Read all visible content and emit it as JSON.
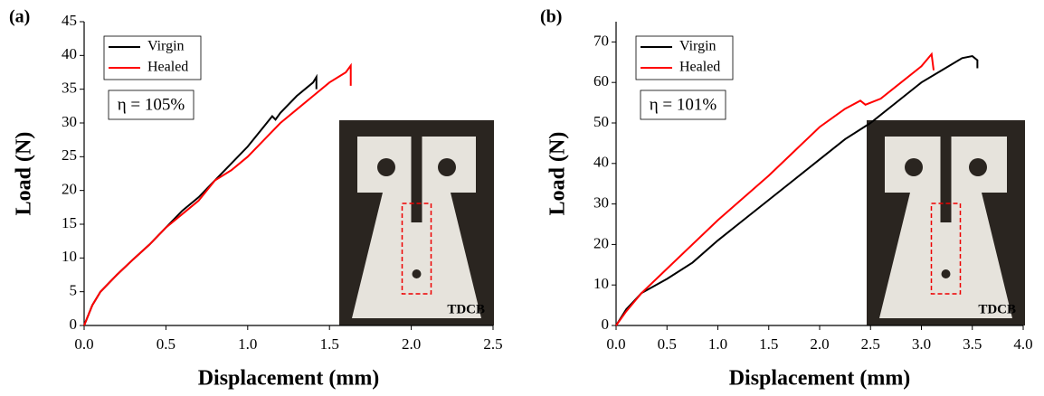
{
  "chart_data": [
    {
      "type": "line",
      "panel_label": "(a)",
      "annotation": "η = 105%",
      "inset_label": "TDCB",
      "xlabel": "Displacement (mm)",
      "ylabel": "Load (N)",
      "xlim": [
        0,
        2.5
      ],
      "xticks": [
        {
          "value": 0,
          "label": "0.0"
        },
        0.5,
        {
          "value": 1,
          "label": "1.0"
        },
        1.5,
        {
          "value": 2,
          "label": "2.0"
        },
        2.5
      ],
      "ylim": [
        0,
        45
      ],
      "yticks": [
        0,
        5,
        10,
        15,
        20,
        25,
        30,
        35,
        40,
        45
      ],
      "series": [
        {
          "name": "Virgin",
          "color": "#000000",
          "x": [
            0,
            0.05,
            0.1,
            0.2,
            0.3,
            0.4,
            0.5,
            0.6,
            0.7,
            0.8,
            0.9,
            1.0,
            1.1,
            1.15,
            1.17,
            1.2,
            1.3,
            1.4,
            1.42,
            1.42
          ],
          "values": [
            0,
            3,
            5,
            7.5,
            9.8,
            12,
            14.5,
            17,
            19,
            21.5,
            24,
            26.5,
            29.5,
            31,
            30.5,
            31.5,
            34,
            36,
            36.8,
            35
          ]
        },
        {
          "name": "Healed",
          "color": "#ff0000",
          "x": [
            0,
            0.05,
            0.1,
            0.2,
            0.3,
            0.4,
            0.5,
            0.6,
            0.7,
            0.8,
            0.9,
            1.0,
            1.1,
            1.2,
            1.3,
            1.4,
            1.5,
            1.6,
            1.63,
            1.63
          ],
          "values": [
            0,
            3,
            5,
            7.5,
            9.8,
            12,
            14.5,
            16.5,
            18.5,
            21.5,
            23,
            25,
            27.5,
            30,
            32,
            34,
            36,
            37.5,
            38.5,
            35.5
          ]
        }
      ]
    },
    {
      "type": "line",
      "panel_label": "(b)",
      "annotation": "η = 101%",
      "inset_label": "TDCB",
      "xlabel": "Displacement (mm)",
      "ylabel": "Load (N)",
      "xlim": [
        0,
        4
      ],
      "xticks": [
        {
          "value": 0,
          "label": "0.0"
        },
        0.5,
        {
          "value": 1,
          "label": "1.0"
        },
        1.5,
        {
          "value": 2,
          "label": "2.0"
        },
        2.5,
        {
          "value": 3,
          "label": "3.0"
        },
        3.5,
        {
          "value": 4,
          "label": "4.0"
        }
      ],
      "ylim": [
        0,
        75
      ],
      "yticks": [
        0,
        10,
        20,
        30,
        40,
        50,
        60,
        70
      ],
      "series": [
        {
          "name": "Virgin",
          "color": "#000000",
          "x": [
            0,
            0.1,
            0.25,
            0.5,
            0.75,
            1.0,
            1.25,
            1.5,
            1.75,
            2.0,
            2.25,
            2.5,
            2.75,
            3.0,
            3.2,
            3.4,
            3.5,
            3.55,
            3.55
          ],
          "values": [
            0,
            4,
            8,
            11.5,
            15.5,
            21,
            26,
            31,
            36,
            41,
            46,
            50,
            55,
            60,
            63,
            66,
            66.5,
            65.5,
            63.5
          ]
        },
        {
          "name": "Healed",
          "color": "#ff0000",
          "x": [
            0,
            0.1,
            0.25,
            0.5,
            0.75,
            1.0,
            1.25,
            1.5,
            1.75,
            2.0,
            2.25,
            2.4,
            2.45,
            2.6,
            2.75,
            3.0,
            3.1,
            3.12
          ],
          "values": [
            0,
            3.5,
            8,
            14,
            20,
            26,
            31.5,
            37,
            43,
            49,
            53.5,
            55.5,
            54.5,
            56,
            59,
            64,
            67,
            63
          ]
        }
      ]
    }
  ]
}
